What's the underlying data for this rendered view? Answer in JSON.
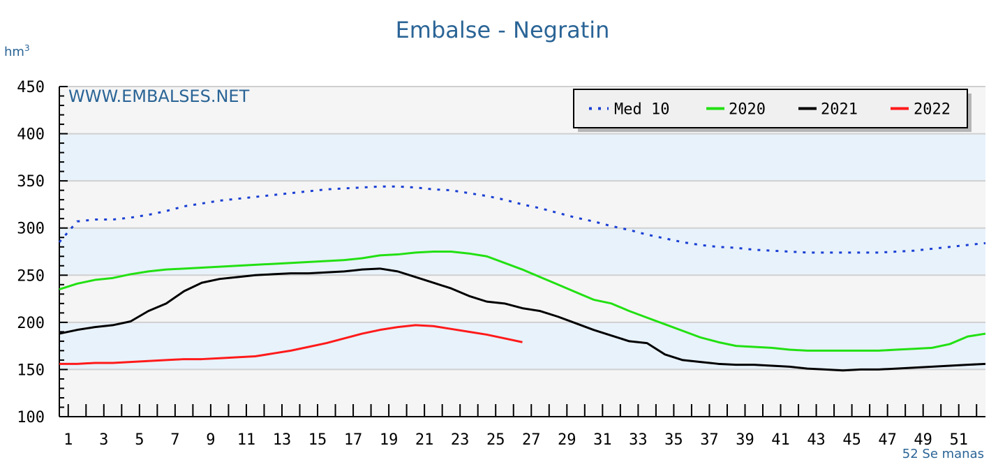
{
  "chart_data": {
    "type": "line",
    "title": "Embalse - Negratin",
    "ylabel": "hm",
    "ylabel_superscript": "3",
    "xlabel": "52 Se manas",
    "watermark": "WWW.EMBALSES.NET",
    "ylim": [
      100,
      450
    ],
    "yticks": [
      100,
      150,
      200,
      250,
      300,
      350,
      400,
      450
    ],
    "xlim": [
      0,
      52
    ],
    "xticks": [
      1,
      3,
      5,
      7,
      9,
      11,
      13,
      15,
      17,
      19,
      21,
      23,
      25,
      27,
      29,
      31,
      33,
      35,
      37,
      39,
      41,
      43,
      45,
      47,
      49,
      51
    ],
    "grid": true,
    "bands": [
      [
        150,
        200
      ],
      [
        250,
        300
      ],
      [
        350,
        400
      ]
    ],
    "legend_position": "top-right",
    "series": [
      {
        "name": "Med 10",
        "color": "#1a3fd4",
        "style": "dotted",
        "x": [
          0,
          1,
          2,
          3,
          4,
          5,
          6,
          7,
          8,
          9,
          10,
          11,
          12,
          13,
          14,
          15,
          16,
          17,
          18,
          19,
          20,
          21,
          22,
          23,
          24,
          25,
          26,
          27,
          28,
          29,
          30,
          31,
          32,
          33,
          34,
          35,
          36,
          37,
          38,
          39,
          40,
          41,
          42,
          43,
          44,
          45,
          46,
          47,
          48,
          49,
          50,
          51,
          52
        ],
        "values": [
          285,
          307,
          309,
          309,
          311,
          314,
          318,
          323,
          326,
          329,
          331,
          333,
          335,
          337,
          339,
          341,
          342,
          343,
          344,
          344,
          343,
          341,
          340,
          337,
          334,
          330,
          325,
          321,
          316,
          311,
          307,
          302,
          298,
          293,
          289,
          285,
          282,
          280,
          279,
          277,
          276,
          275,
          274,
          274,
          274,
          274,
          274,
          275,
          276,
          278,
          280,
          282,
          284
        ]
      },
      {
        "name": "2020",
        "color": "#22e012",
        "style": "solid",
        "x": [
          0,
          1,
          2,
          3,
          4,
          5,
          6,
          7,
          8,
          9,
          10,
          11,
          12,
          13,
          14,
          15,
          16,
          17,
          18,
          19,
          20,
          21,
          22,
          23,
          24,
          25,
          26,
          27,
          28,
          29,
          30,
          31,
          32,
          33,
          34,
          35,
          36,
          37,
          38,
          39,
          40,
          41,
          42,
          43,
          44,
          45,
          46,
          47,
          48,
          49,
          50,
          51,
          52
        ],
        "values": [
          235,
          241,
          245,
          247,
          251,
          254,
          256,
          257,
          258,
          259,
          260,
          261,
          262,
          263,
          264,
          265,
          266,
          268,
          271,
          272,
          274,
          275,
          275,
          273,
          270,
          263,
          256,
          248,
          240,
          232,
          224,
          220,
          212,
          205,
          198,
          191,
          184,
          179,
          175,
          174,
          173,
          171,
          170,
          170,
          170,
          170,
          170,
          171,
          172,
          173,
          177,
          185,
          188
        ]
      },
      {
        "name": "2021",
        "color": "#000000",
        "style": "solid",
        "x": [
          0,
          1,
          2,
          3,
          4,
          5,
          6,
          7,
          8,
          9,
          10,
          11,
          12,
          13,
          14,
          15,
          16,
          17,
          18,
          19,
          20,
          21,
          22,
          23,
          24,
          25,
          26,
          27,
          28,
          29,
          30,
          31,
          32,
          33,
          34,
          35,
          36,
          37,
          38,
          39,
          40,
          41,
          42,
          43,
          44,
          45,
          46,
          47,
          48,
          49,
          50,
          51,
          52
        ],
        "values": [
          188,
          192,
          195,
          197,
          201,
          212,
          220,
          233,
          242,
          246,
          248,
          250,
          251,
          252,
          252,
          253,
          254,
          256,
          257,
          254,
          248,
          242,
          236,
          228,
          222,
          220,
          215,
          212,
          206,
          199,
          192,
          186,
          180,
          178,
          166,
          160,
          158,
          156,
          155,
          155,
          154,
          153,
          151,
          150,
          149,
          150,
          150,
          151,
          152,
          153,
          154,
          155,
          156
        ]
      },
      {
        "name": "2022",
        "color": "#ff1a1a",
        "style": "solid",
        "x": [
          0,
          1,
          2,
          3,
          4,
          5,
          6,
          7,
          8,
          9,
          10,
          11,
          12,
          13,
          14,
          15,
          16,
          17,
          18,
          19,
          20,
          21,
          22,
          23,
          24,
          25,
          26
        ],
        "values": [
          156,
          156,
          157,
          157,
          158,
          159,
          160,
          161,
          161,
          162,
          163,
          164,
          167,
          170,
          174,
          178,
          183,
          188,
          192,
          195,
          197,
          196,
          193,
          190,
          187,
          183,
          179
        ]
      }
    ]
  },
  "colors": {
    "title": "#2a6496",
    "band": "#e8f2fb",
    "background": "#f5f5f5",
    "grid": "#d0d0d0"
  }
}
